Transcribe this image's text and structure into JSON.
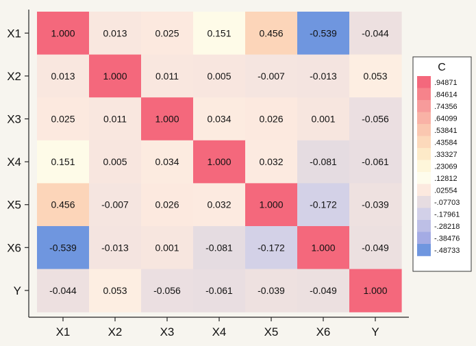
{
  "chart_data": {
    "type": "heatmap",
    "title": "",
    "xlabel": "",
    "ylabel": "",
    "rows": [
      "X1",
      "X2",
      "X3",
      "X4",
      "X5",
      "X6",
      "Y"
    ],
    "columns": [
      "X1",
      "X2",
      "X3",
      "X4",
      "X5",
      "X6",
      "Y"
    ],
    "values": [
      [
        1.0,
        0.013,
        0.025,
        0.151,
        0.456,
        -0.539,
        -0.044
      ],
      [
        0.013,
        1.0,
        0.011,
        0.005,
        -0.007,
        -0.013,
        0.053
      ],
      [
        0.025,
        0.011,
        1.0,
        0.034,
        0.026,
        0.001,
        -0.056
      ],
      [
        0.151,
        0.005,
        0.034,
        1.0,
        0.032,
        -0.081,
        -0.061
      ],
      [
        0.456,
        -0.007,
        0.026,
        0.032,
        1.0,
        -0.172,
        -0.039
      ],
      [
        -0.539,
        -0.013,
        0.001,
        -0.081,
        -0.172,
        1.0,
        -0.049
      ],
      [
        -0.044,
        0.053,
        -0.056,
        -0.061,
        -0.039,
        -0.049,
        1.0
      ]
    ],
    "labels": [
      [
        "1.000",
        "0.013",
        "0.025",
        "0.151",
        "0.456",
        "-0.539",
        "-0.044"
      ],
      [
        "0.013",
        "1.000",
        "0.011",
        "0.005",
        "-0.007",
        "-0.013",
        "0.053"
      ],
      [
        "0.025",
        "0.011",
        "1.000",
        "0.034",
        "0.026",
        "0.001",
        "-0.056"
      ],
      [
        "0.151",
        "0.005",
        "0.034",
        "1.000",
        "0.032",
        "-0.081",
        "-0.061"
      ],
      [
        "0.456",
        "-0.007",
        "0.026",
        "0.032",
        "1.000",
        "-0.172",
        "-0.039"
      ],
      [
        "-0.539",
        "-0.013",
        "0.001",
        "-0.081",
        "-0.172",
        "1.000",
        "-0.049"
      ],
      [
        "-0.044",
        "0.053",
        "-0.056",
        "-0.061",
        "-0.039",
        "-0.049",
        "1.000"
      ]
    ],
    "legend": {
      "title": "C",
      "placement": "right",
      "entries": [
        {
          "label": ".94871",
          "color": "#f4687c"
        },
        {
          "label": ".84614",
          "color": "#f6838b"
        },
        {
          "label": ".74356",
          "color": "#f79b9b"
        },
        {
          "label": ".64099",
          "color": "#f9b2a6"
        },
        {
          "label": ".53841",
          "color": "#fac7b0"
        },
        {
          "label": ".43584",
          "color": "#fcd9bb"
        },
        {
          "label": ".33327",
          "color": "#fdeac8"
        },
        {
          "label": ".23069",
          "color": "#fef6da"
        },
        {
          "label": ".12812",
          "color": "#fefcec"
        },
        {
          "label": ".02554",
          "color": "#fce9df"
        },
        {
          "label": "-.07703",
          "color": "#e6dce1"
        },
        {
          "label": "-.17961",
          "color": "#d2d0e8"
        },
        {
          "label": "-.28218",
          "color": "#bdbfe6"
        },
        {
          "label": "-.38476",
          "color": "#a4abe4"
        },
        {
          "label": "-.48733",
          "color": "#6f96df"
        }
      ]
    },
    "grid": false
  }
}
